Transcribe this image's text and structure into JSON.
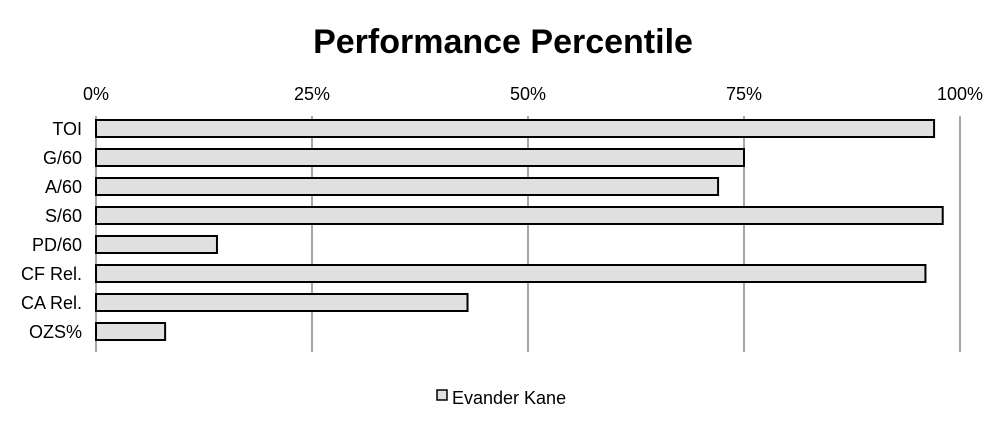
{
  "chart_data": {
    "type": "bar",
    "orientation": "horizontal",
    "title": "Performance Percentile",
    "categories": [
      "TOI",
      "G/60",
      "A/60",
      "S/60",
      "PD/60",
      "CF Rel.",
      "CA Rel.",
      "OZS%"
    ],
    "series": [
      {
        "name": "Evander Kane",
        "values": [
          97,
          75,
          72,
          98,
          14,
          96,
          43,
          8
        ]
      }
    ],
    "xlim": [
      0,
      100
    ],
    "x_ticks": [
      "0%",
      "25%",
      "50%",
      "75%",
      "100%"
    ],
    "x_tick_values": [
      0,
      25,
      50,
      75,
      100
    ],
    "x_axis_position": "top",
    "grid": "vertical",
    "legend": "bottom-center",
    "bar_color": "#e0e0e0",
    "grid_color": "#a6a6a6",
    "xlabel": "",
    "ylabel": ""
  }
}
